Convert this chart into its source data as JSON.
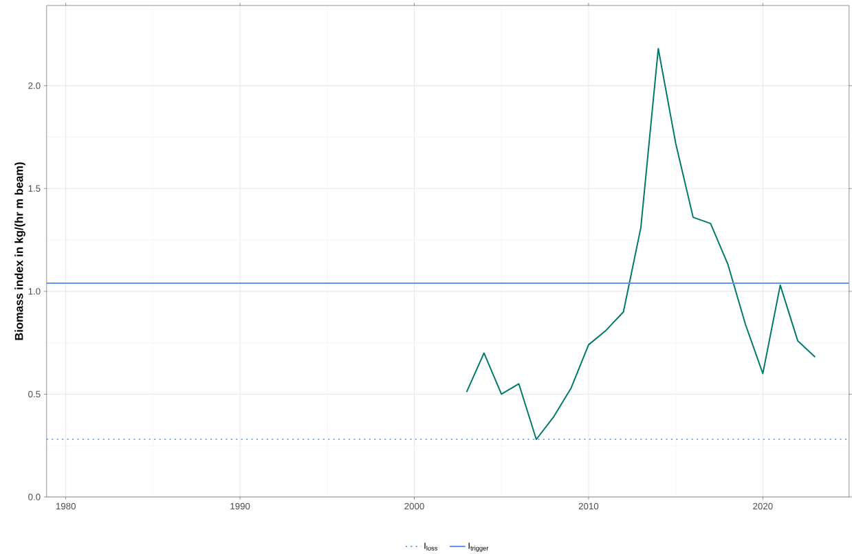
{
  "chart_data": {
    "type": "line",
    "ylabel": "Biomass index in kg/(hr m beam)",
    "x": [
      2003,
      2004,
      2005,
      2006,
      2007,
      2008,
      2009,
      2010,
      2011,
      2012,
      2013,
      2014,
      2015,
      2016,
      2017,
      2018,
      2019,
      2020,
      2021,
      2022,
      2023
    ],
    "series": [
      {
        "color": "#00796b",
        "values": [
          0.51,
          0.7,
          0.5,
          0.55,
          0.28,
          0.39,
          0.53,
          0.74,
          0.81,
          0.9,
          1.31,
          2.18,
          1.72,
          1.36,
          1.33,
          1.13,
          0.84,
          0.6,
          1.03,
          0.76,
          0.68
        ]
      }
    ],
    "xlim": [
      1978.9,
      2024.95
    ],
    "ylim": [
      0,
      2.39
    ],
    "xticks": [
      1980,
      1990,
      2000,
      2010,
      2020
    ],
    "yticks": [
      {
        "value": 0,
        "label": "0.0"
      },
      0.5,
      {
        "value": 1,
        "label": "1.0"
      },
      1.5,
      {
        "value": 2,
        "label": "2.0"
      }
    ],
    "ref_lines": [
      {
        "axis": "y",
        "value": 0.28,
        "label": "I$_{loss}$",
        "color": "#6f9ff5",
        "line_style": "dotted"
      },
      {
        "axis": "y",
        "value": 1.04,
        "label": "I$_{trigger}$",
        "color": "#6495ed",
        "line_style": "solid"
      }
    ],
    "grid": true,
    "legend": "bottom",
    "marker": "none",
    "line_style": "solid"
  }
}
